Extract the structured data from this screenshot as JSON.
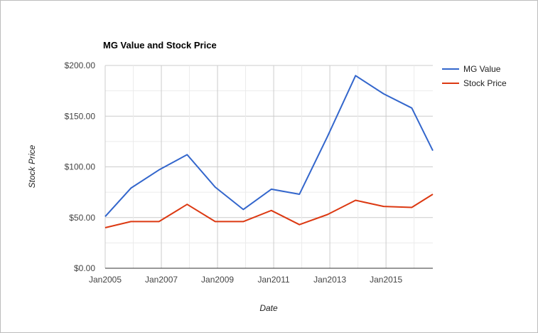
{
  "chart_data": {
    "type": "line",
    "title": "MG Value and Stock Price",
    "xlabel": "Date",
    "ylabel": "Stock Price",
    "ylim": [
      0,
      200
    ],
    "xlim": [
      "2005-01",
      "2016-09"
    ],
    "y_ticks": [
      "$0.00",
      "$50.00",
      "$100.00",
      "$150.00",
      "$200.00"
    ],
    "x_ticks": [
      "Jan2005",
      "Jan2007",
      "Jan2009",
      "Jan2011",
      "Jan2013",
      "Jan2015"
    ],
    "x": [
      "2005-01",
      "2005-12",
      "2006-12",
      "2007-12",
      "2008-12",
      "2009-12",
      "2010-12",
      "2011-12",
      "2012-12",
      "2013-12",
      "2014-12",
      "2015-12",
      "2016-09"
    ],
    "series": [
      {
        "name": "MG Value",
        "color": "#3366cc",
        "values": [
          51,
          79,
          97,
          112,
          80,
          58,
          78,
          73,
          130,
          190,
          172,
          158,
          116
        ]
      },
      {
        "name": "Stock Price",
        "color": "#dc3912",
        "values": [
          40,
          46,
          46,
          63,
          46,
          46,
          57,
          43,
          53,
          67,
          61,
          60,
          73
        ]
      }
    ],
    "grid": true,
    "legend_position": "right"
  }
}
